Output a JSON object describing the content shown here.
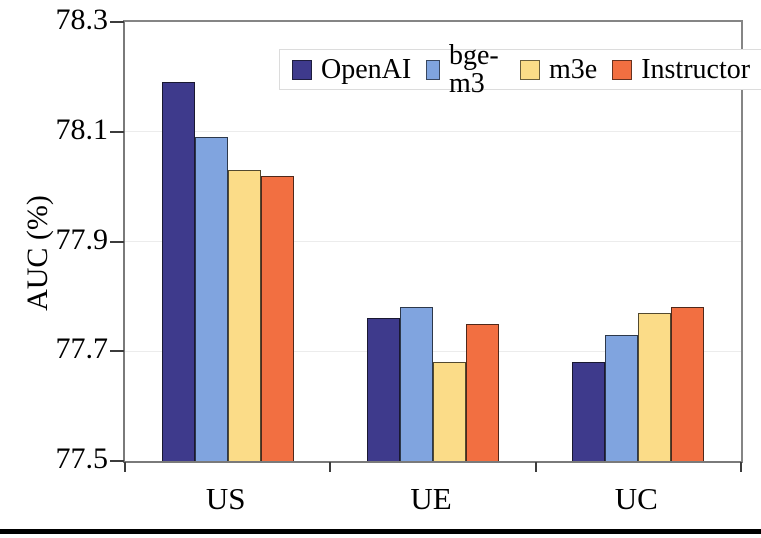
{
  "chart_data": {
    "type": "bar",
    "title": "",
    "ylabel": "AUC (%)",
    "xlabel": "",
    "categories": [
      "US",
      "UE",
      "UC"
    ],
    "series": [
      {
        "name": "OpenAI",
        "color": "#3E3A8C",
        "values": [
          78.19,
          77.76,
          77.68
        ]
      },
      {
        "name": "bge-m3",
        "color": "#80A4DF",
        "values": [
          78.09,
          77.78,
          77.73
        ]
      },
      {
        "name": "m3e",
        "color": "#FBDC88",
        "values": [
          78.03,
          77.68,
          77.77
        ]
      },
      {
        "name": "Instructor",
        "color": "#F26F41",
        "values": [
          78.02,
          77.75,
          77.78
        ]
      }
    ],
    "ylim": [
      77.5,
      78.3
    ],
    "yticks": [
      77.5,
      77.7,
      77.9,
      78.1,
      78.3
    ],
    "ytick_labels": [
      "77.5",
      "77.7",
      "77.9",
      "78.1",
      "78.3"
    ],
    "grid": true,
    "legend_position": "top-inside",
    "frame_color": "#858585",
    "grid_color": "#ececec"
  }
}
